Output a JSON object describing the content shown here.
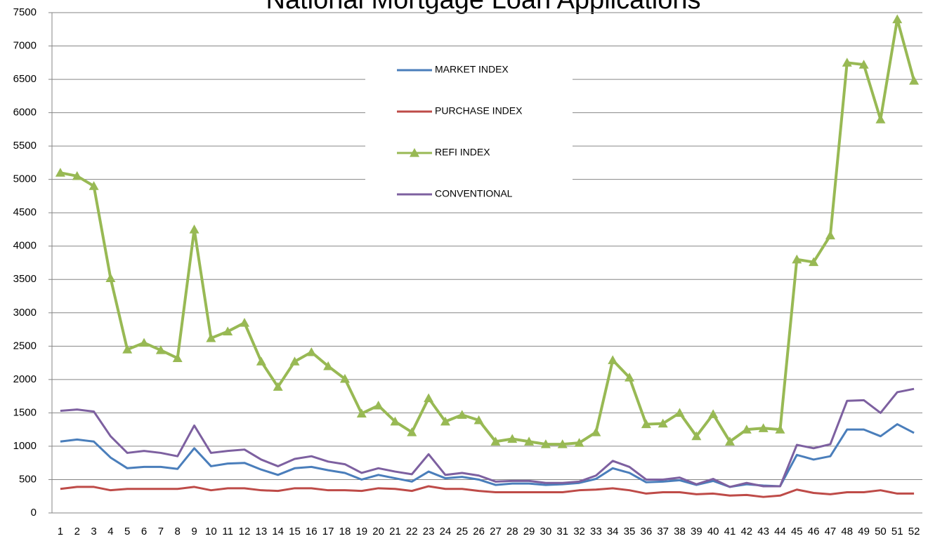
{
  "chart_data": {
    "type": "line",
    "title": "National Mortgage Loan Applications",
    "categories": [
      1,
      2,
      3,
      4,
      5,
      6,
      7,
      8,
      9,
      10,
      11,
      12,
      13,
      14,
      15,
      16,
      17,
      18,
      19,
      20,
      21,
      22,
      23,
      24,
      25,
      26,
      27,
      28,
      29,
      30,
      31,
      32,
      33,
      34,
      35,
      36,
      37,
      38,
      39,
      40,
      41,
      42,
      43,
      44,
      45,
      46,
      47,
      48,
      49,
      50,
      51,
      52
    ],
    "series": [
      {
        "name": "MARKET INDEX",
        "color": "#4a7ebb",
        "marker": "none",
        "values": [
          1070,
          1100,
          1070,
          830,
          670,
          690,
          690,
          660,
          970,
          700,
          740,
          750,
          650,
          570,
          670,
          690,
          640,
          600,
          500,
          570,
          520,
          470,
          620,
          520,
          540,
          500,
          420,
          440,
          440,
          420,
          430,
          450,
          510,
          670,
          600,
          460,
          470,
          490,
          420,
          480,
          390,
          430,
          410,
          400,
          870,
          800,
          850,
          1250,
          1250,
          1150,
          1330,
          1200
        ]
      },
      {
        "name": "PURCHASE INDEX",
        "color": "#be4b48",
        "marker": "none",
        "values": [
          360,
          390,
          390,
          340,
          360,
          360,
          360,
          360,
          390,
          340,
          370,
          370,
          340,
          330,
          370,
          370,
          340,
          340,
          330,
          370,
          360,
          330,
          400,
          360,
          360,
          330,
          310,
          310,
          310,
          310,
          310,
          340,
          350,
          370,
          340,
          290,
          310,
          310,
          280,
          290,
          260,
          270,
          240,
          260,
          350,
          300,
          280,
          310,
          310,
          340,
          290,
          290
        ]
      },
      {
        "name": "REFI INDEX",
        "color": "#98b954",
        "marker": "triangle",
        "values": [
          5100,
          5050,
          4900,
          3520,
          2450,
          2550,
          2440,
          2320,
          4250,
          2620,
          2720,
          2850,
          2270,
          1890,
          2270,
          2410,
          2200,
          2010,
          1490,
          1610,
          1370,
          1210,
          1720,
          1370,
          1470,
          1390,
          1070,
          1110,
          1070,
          1030,
          1030,
          1050,
          1210,
          2290,
          2030,
          1330,
          1340,
          1500,
          1150,
          1480,
          1070,
          1250,
          1270,
          1250,
          3800,
          3760,
          4160,
          6750,
          6720,
          5900,
          7400,
          6480
        ]
      },
      {
        "name": "CONVENTIONAL",
        "color": "#7d60a0",
        "marker": "none",
        "values": [
          1530,
          1550,
          1520,
          1150,
          900,
          930,
          900,
          850,
          1310,
          900,
          930,
          950,
          800,
          700,
          810,
          850,
          770,
          730,
          600,
          670,
          620,
          580,
          880,
          570,
          600,
          560,
          470,
          480,
          480,
          450,
          450,
          470,
          560,
          780,
          690,
          500,
          500,
          530,
          430,
          510,
          390,
          450,
          400,
          400,
          1020,
          970,
          1030,
          1680,
          1690,
          1500,
          1810,
          1860
        ]
      }
    ],
    "ylim": [
      0,
      7500
    ],
    "yticks": [
      0,
      500,
      1000,
      1500,
      2000,
      2500,
      3000,
      3500,
      4000,
      4500,
      5000,
      5500,
      6000,
      6500,
      7000,
      7500
    ],
    "grid": true,
    "legend": "upper center"
  }
}
